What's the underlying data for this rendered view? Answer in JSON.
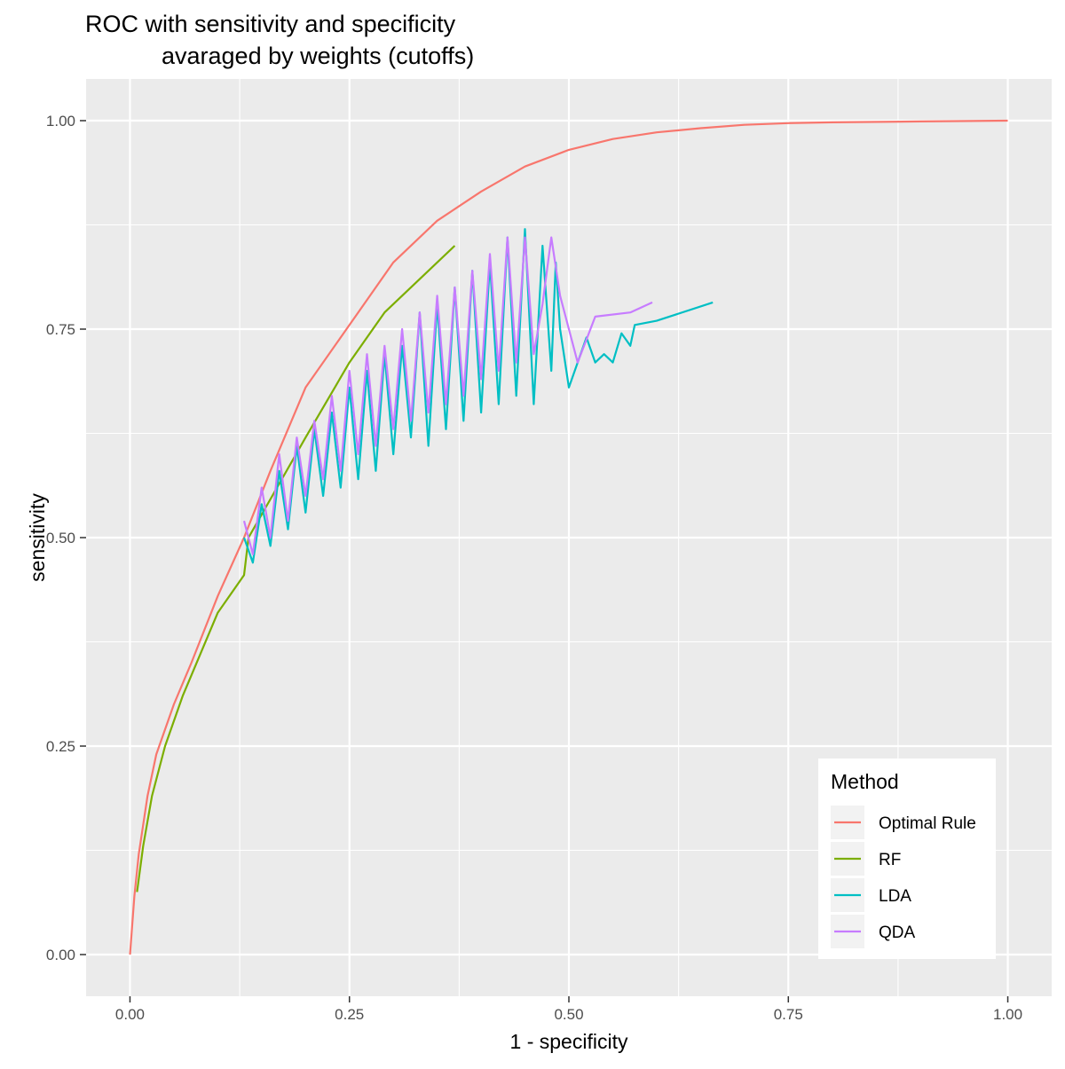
{
  "chart_data": {
    "type": "line",
    "title_line1": "ROC with sensitivity and specificity",
    "title_line2": "avaraged by weights (cutoffs)",
    "xlabel": "1 - specificity",
    "ylabel": "sensitivity",
    "xlim": [
      -0.05,
      1.05
    ],
    "ylim": [
      -0.05,
      1.05
    ],
    "x_ticks": [
      0,
      0.25,
      0.5,
      0.75,
      1
    ],
    "x_tick_labels": [
      "0.00",
      "0.25",
      "0.50",
      "0.75",
      "1.00"
    ],
    "y_ticks": [
      0,
      0.25,
      0.5,
      0.75,
      1
    ],
    "y_tick_labels": [
      "0.00",
      "0.25",
      "0.50",
      "0.75",
      "1.00"
    ],
    "grid": true,
    "legend": {
      "title": "Method",
      "position": "bottom-right"
    },
    "series": [
      {
        "name": "Optimal Rule",
        "color": "#F8766D",
        "x": [
          0,
          0.005,
          0.01,
          0.02,
          0.03,
          0.05,
          0.07,
          0.1,
          0.13,
          0.16,
          0.2,
          0.26,
          0.3,
          0.35,
          0.4,
          0.45,
          0.5,
          0.55,
          0.6,
          0.65,
          0.7,
          0.75,
          0.8,
          0.9,
          1.0
        ],
        "y": [
          0,
          0.07,
          0.12,
          0.19,
          0.24,
          0.3,
          0.35,
          0.43,
          0.5,
          0.58,
          0.68,
          0.77,
          0.83,
          0.88,
          0.915,
          0.945,
          0.965,
          0.978,
          0.986,
          0.991,
          0.995,
          0.997,
          0.998,
          0.999,
          1.0
        ],
        "values": [
          0,
          0.07,
          0.12,
          0.19,
          0.24,
          0.3,
          0.35,
          0.43,
          0.5,
          0.58,
          0.68,
          0.77,
          0.83,
          0.88,
          0.915,
          0.945,
          0.965,
          0.978,
          0.986,
          0.991,
          0.995,
          0.997,
          0.998,
          0.999,
          1.0
        ]
      },
      {
        "name": "RF",
        "color": "#7CAE00",
        "x": [
          0.008,
          0.015,
          0.025,
          0.04,
          0.06,
          0.08,
          0.1,
          0.13,
          0.135,
          0.2,
          0.25,
          0.29,
          0.33,
          0.37
        ],
        "y": [
          0.075,
          0.13,
          0.19,
          0.25,
          0.31,
          0.36,
          0.41,
          0.455,
          0.5,
          0.62,
          0.71,
          0.77,
          0.81,
          0.85
        ],
        "values": [
          0.075,
          0.13,
          0.19,
          0.25,
          0.31,
          0.36,
          0.41,
          0.455,
          0.5,
          0.62,
          0.71,
          0.77,
          0.81,
          0.85
        ]
      },
      {
        "name": "LDA",
        "color": "#00BFC4",
        "x": [
          0.13,
          0.14,
          0.15,
          0.16,
          0.17,
          0.18,
          0.19,
          0.2,
          0.21,
          0.22,
          0.23,
          0.24,
          0.25,
          0.26,
          0.27,
          0.28,
          0.29,
          0.3,
          0.31,
          0.32,
          0.33,
          0.34,
          0.35,
          0.36,
          0.37,
          0.38,
          0.39,
          0.4,
          0.41,
          0.42,
          0.43,
          0.44,
          0.45,
          0.46,
          0.47,
          0.48,
          0.485,
          0.49,
          0.5,
          0.51,
          0.52,
          0.53,
          0.54,
          0.55,
          0.56,
          0.57,
          0.575,
          0.6,
          0.664
        ],
        "y": [
          0.5,
          0.47,
          0.54,
          0.49,
          0.58,
          0.51,
          0.61,
          0.53,
          0.63,
          0.55,
          0.65,
          0.56,
          0.68,
          0.57,
          0.7,
          0.58,
          0.72,
          0.6,
          0.73,
          0.62,
          0.77,
          0.61,
          0.78,
          0.63,
          0.8,
          0.64,
          0.82,
          0.65,
          0.83,
          0.66,
          0.86,
          0.67,
          0.87,
          0.66,
          0.85,
          0.7,
          0.83,
          0.75,
          0.68,
          0.71,
          0.74,
          0.71,
          0.72,
          0.71,
          0.745,
          0.73,
          0.755,
          0.76,
          0.782
        ],
        "values": [
          0.5,
          0.47,
          0.54,
          0.49,
          0.58,
          0.51,
          0.61,
          0.53,
          0.63,
          0.55,
          0.65,
          0.56,
          0.68,
          0.57,
          0.7,
          0.58,
          0.72,
          0.6,
          0.73,
          0.62,
          0.77,
          0.61,
          0.78,
          0.63,
          0.8,
          0.64,
          0.82,
          0.65,
          0.83,
          0.66,
          0.86,
          0.67,
          0.87,
          0.66,
          0.85,
          0.7,
          0.83,
          0.75,
          0.68,
          0.71,
          0.74,
          0.71,
          0.72,
          0.71,
          0.745,
          0.73,
          0.755,
          0.76,
          0.782
        ]
      },
      {
        "name": "QDA",
        "color": "#C77CFF",
        "x": [
          0.13,
          0.14,
          0.15,
          0.16,
          0.17,
          0.18,
          0.19,
          0.2,
          0.21,
          0.22,
          0.23,
          0.24,
          0.25,
          0.26,
          0.27,
          0.28,
          0.29,
          0.3,
          0.31,
          0.32,
          0.33,
          0.34,
          0.35,
          0.36,
          0.37,
          0.38,
          0.39,
          0.4,
          0.41,
          0.42,
          0.43,
          0.44,
          0.45,
          0.46,
          0.47,
          0.48,
          0.49,
          0.5,
          0.51,
          0.53,
          0.57,
          0.595
        ],
        "y": [
          0.52,
          0.48,
          0.56,
          0.5,
          0.6,
          0.52,
          0.62,
          0.55,
          0.64,
          0.57,
          0.67,
          0.58,
          0.7,
          0.6,
          0.72,
          0.61,
          0.73,
          0.63,
          0.75,
          0.64,
          0.77,
          0.65,
          0.79,
          0.66,
          0.8,
          0.67,
          0.82,
          0.69,
          0.84,
          0.7,
          0.86,
          0.71,
          0.86,
          0.72,
          0.78,
          0.86,
          0.79,
          0.75,
          0.71,
          0.765,
          0.77,
          0.782
        ],
        "values": [
          0.52,
          0.48,
          0.56,
          0.5,
          0.6,
          0.52,
          0.62,
          0.55,
          0.64,
          0.57,
          0.67,
          0.58,
          0.7,
          0.6,
          0.72,
          0.61,
          0.73,
          0.63,
          0.75,
          0.64,
          0.77,
          0.65,
          0.79,
          0.66,
          0.8,
          0.67,
          0.82,
          0.69,
          0.84,
          0.7,
          0.86,
          0.71,
          0.86,
          0.72,
          0.78,
          0.86,
          0.79,
          0.75,
          0.71,
          0.765,
          0.77,
          0.782
        ]
      }
    ]
  }
}
